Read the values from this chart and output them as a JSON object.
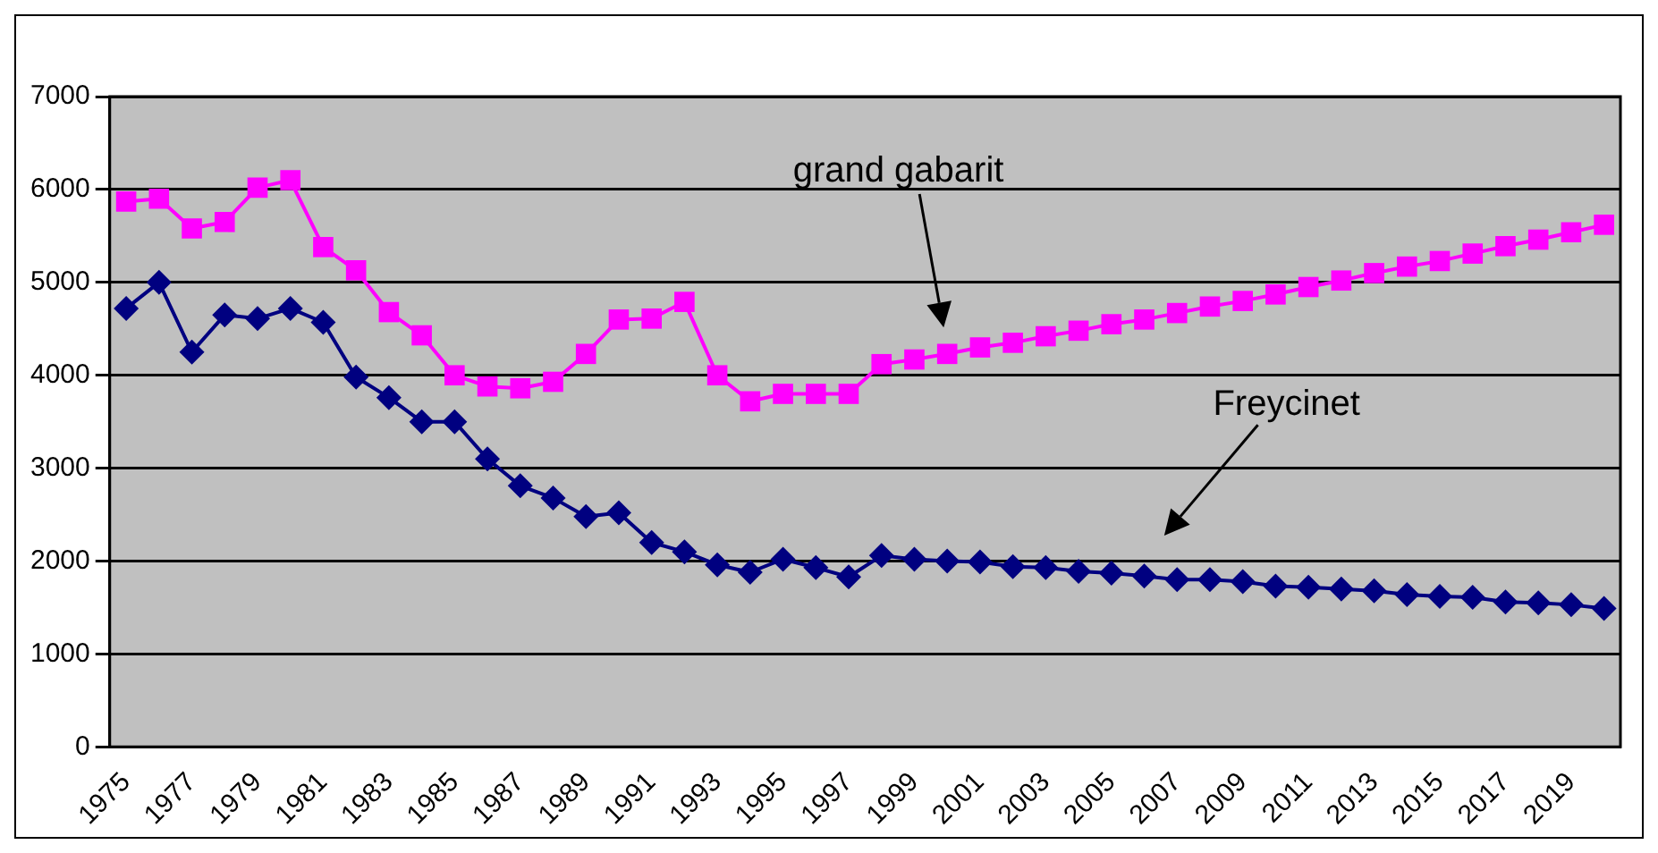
{
  "chart_data": {
    "type": "line",
    "categories": [
      "1975",
      null,
      "1977",
      null,
      "1979",
      null,
      "1981",
      null,
      "1983",
      null,
      "1985",
      null,
      "1987",
      null,
      "1989",
      null,
      "1991",
      null,
      "1993",
      null,
      "1995",
      null,
      "1997",
      null,
      "1999",
      null,
      "2001",
      null,
      "2003",
      null,
      "2005",
      null,
      "2007",
      null,
      "2009",
      null,
      "2011",
      null,
      "2013",
      null,
      "2015",
      null,
      "2017",
      null,
      "2019",
      null
    ],
    "series": [
      {
        "color": "#ff00ff",
        "marker": "square",
        "values": [
          5870,
          5900,
          5580,
          5650,
          6020,
          6100,
          5380,
          5130,
          4680,
          4430,
          4000,
          3880,
          3860,
          3930,
          4230,
          4600,
          4610,
          4790,
          4000,
          3720,
          3800,
          3800,
          3800,
          4120,
          4170,
          4230,
          4300,
          4350,
          4420,
          4480,
          4550,
          4600,
          4670,
          4740,
          4800,
          4870,
          4950,
          5020,
          5100,
          5170,
          5230,
          5310,
          5390,
          5460,
          5540,
          5620
        ]
      },
      {
        "color": "#000080",
        "marker": "diamond",
        "values": [
          4720,
          5000,
          4250,
          4650,
          4610,
          4720,
          4570,
          3980,
          3760,
          3500,
          3500,
          3100,
          2810,
          2680,
          2480,
          2520,
          2200,
          2100,
          1960,
          1880,
          2020,
          1930,
          1830,
          2060,
          2020,
          2000,
          1990,
          1940,
          1930,
          1890,
          1870,
          1840,
          1800,
          1800,
          1780,
          1730,
          1720,
          1700,
          1680,
          1640,
          1620,
          1610,
          1560,
          1550,
          1530,
          1490
        ]
      }
    ],
    "ylim": [
      0,
      7000
    ],
    "yticks": [
      0,
      1000,
      2000,
      3000,
      4000,
      5000,
      6000,
      7000
    ],
    "grid": "y",
    "legend": false,
    "annotations": [
      "grand gabarit",
      "Freycinet"
    ]
  }
}
